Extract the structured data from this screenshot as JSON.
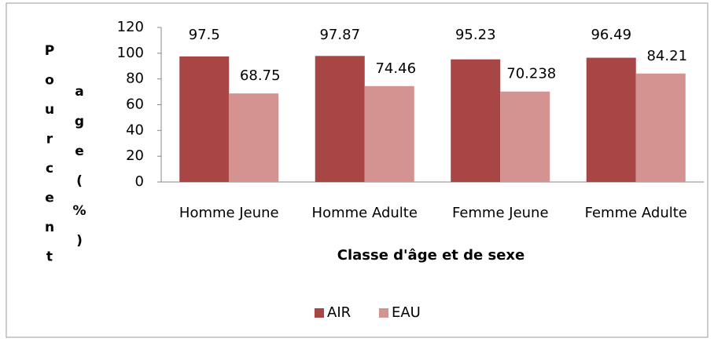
{
  "chart_data": {
    "type": "bar",
    "y_label": "Pourcentage (%)",
    "x_label": "Classe d'âge et de sexe",
    "categories": [
      "Homme Jeune",
      "Homme Adulte",
      "Femme Jeune",
      "Femme Adulte"
    ],
    "series": [
      {
        "name": "AIR",
        "color": "#a84646",
        "values": [
          97.5,
          97.87,
          95.23,
          96.49
        ]
      },
      {
        "name": "EAU",
        "color": "#d49391",
        "values": [
          68.75,
          74.46,
          70.238,
          84.21
        ]
      }
    ],
    "ylim": [
      0,
      120
    ],
    "yticks": [
      0,
      20,
      40,
      60,
      80,
      100,
      120
    ],
    "legend": "bottom"
  }
}
